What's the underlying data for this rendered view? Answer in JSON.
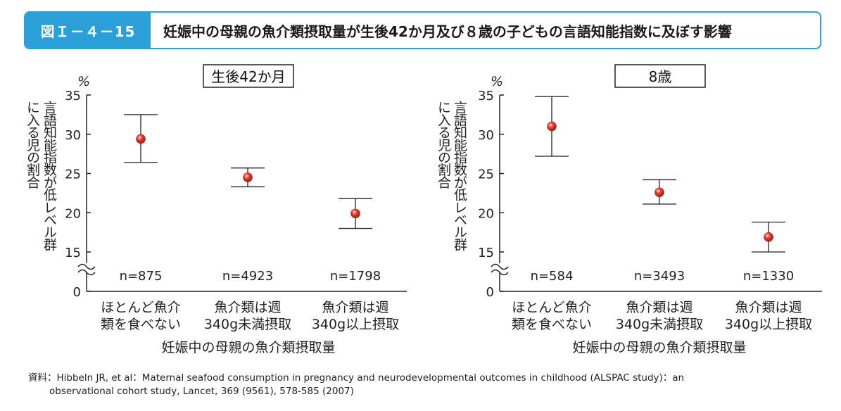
{
  "header": {
    "figure_label": "図Ｉ－４－15",
    "title": "妊娠中の母親の魚介類摂取量が生後42か月及び８歳の子どもの言語知能指数に及ぼす影響"
  },
  "source": {
    "label": "資料：",
    "line1": "Hibbeln JR, et al：Maternal seafood consumption in pregnancy and neurodevelopmental outcomes in childhood (ALSPAC study)：an",
    "line2": "observational cohort study, Lancet, 369 (9561), 578-585 (2007)"
  },
  "colors": {
    "accent": "#2a9fd8",
    "point": "#e53a2e"
  },
  "chart_data": [
    {
      "type": "scatter",
      "panel_title": "生後42か月",
      "unit": "%",
      "ylabel": "言語知能指数が低レベル群に入る児の割合",
      "xlabel": "妊娠中の母親の魚介類摂取量",
      "ylim": [
        0,
        35
      ],
      "axis_break": true,
      "y_ticks": [
        "0",
        "15",
        "20",
        "25",
        "30",
        "35"
      ],
      "categories": [
        [
          "ほとんど魚介",
          "類を食べない"
        ],
        [
          "魚介類は週",
          "340g未満摂取"
        ],
        [
          "魚介類は週",
          "340g以上摂取"
        ]
      ],
      "n_labels": [
        "n=875",
        "n=4923",
        "n=1798"
      ],
      "values": [
        29.4,
        24.5,
        19.9
      ],
      "error_low": [
        26.4,
        23.3,
        18.0
      ],
      "error_high": [
        32.5,
        25.7,
        21.8
      ]
    },
    {
      "type": "scatter",
      "panel_title": "8歳",
      "unit": "%",
      "ylabel": "言語知能指数が低レベル群に入る児の割合",
      "xlabel": "妊娠中の母親の魚介類摂取量",
      "ylim": [
        0,
        35
      ],
      "axis_break": true,
      "y_ticks": [
        "0",
        "15",
        "20",
        "25",
        "30",
        "35"
      ],
      "categories": [
        [
          "ほとんど魚介",
          "類を食べない"
        ],
        [
          "魚介類は週",
          "340g未満摂取"
        ],
        [
          "魚介類は週",
          "340g以上摂取"
        ]
      ],
      "n_labels": [
        "n=584",
        "n=3493",
        "n=1330"
      ],
      "values": [
        31.0,
        22.6,
        16.9
      ],
      "error_low": [
        27.2,
        21.1,
        15.0
      ],
      "error_high": [
        34.8,
        24.2,
        18.8
      ]
    }
  ]
}
